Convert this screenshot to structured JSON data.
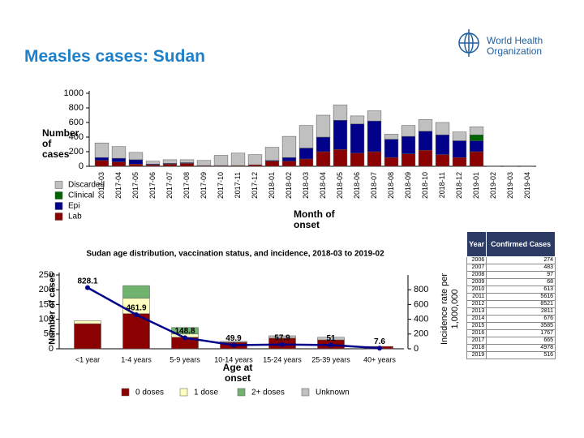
{
  "header": {
    "title": "Measles cases: Sudan",
    "logo_text": [
      "World Health",
      "Organization"
    ]
  },
  "chart_data": [
    {
      "type": "bar",
      "stacked": true,
      "x_label": "Month of onset",
      "y_label": "Number of cases",
      "categories": [
        "2017-03",
        "2017-04",
        "2017-05",
        "2017-06",
        "2017-07",
        "2017-08",
        "2017-09",
        "2017-10",
        "2017-11",
        "2017-12",
        "2018-01",
        "2018-02",
        "2018-03",
        "2018-04",
        "2018-05",
        "2018-06",
        "2018-07",
        "2018-08",
        "2018-09",
        "2018-10",
        "2018-11",
        "2018-12",
        "2019-01",
        "2019-02",
        "2019-03",
        "2019-04"
      ],
      "series": [
        {
          "name": "Lab",
          "color": "#8b0000",
          "values": [
            80,
            60,
            30,
            20,
            30,
            40,
            10,
            10,
            10,
            20,
            70,
            70,
            100,
            200,
            230,
            180,
            200,
            120,
            170,
            220,
            160,
            120,
            200,
            0,
            0,
            0
          ]
        },
        {
          "name": "Epi",
          "color": "#00008b",
          "values": [
            40,
            50,
            60,
            10,
            10,
            10,
            0,
            0,
            0,
            0,
            10,
            50,
            150,
            200,
            400,
            400,
            420,
            250,
            240,
            260,
            270,
            230,
            150,
            0,
            0,
            0
          ]
        },
        {
          "name": "Clinical",
          "color": "#006400",
          "values": [
            0,
            0,
            0,
            0,
            0,
            0,
            0,
            0,
            0,
            0,
            0,
            0,
            0,
            0,
            0,
            0,
            0,
            0,
            0,
            0,
            0,
            0,
            80,
            0,
            0,
            0
          ]
        },
        {
          "name": "Discarded",
          "color": "#c0c0c0",
          "values": [
            200,
            160,
            100,
            40,
            50,
            40,
            70,
            140,
            170,
            140,
            180,
            290,
            310,
            300,
            210,
            110,
            140,
            70,
            150,
            160,
            170,
            120,
            110,
            5,
            5,
            5
          ]
        }
      ],
      "ylim": [
        0,
        1000
      ],
      "yticks": [
        0,
        200,
        400,
        600,
        800,
        1000
      ],
      "grid": false
    },
    {
      "type": "bar",
      "stacked": true,
      "title": "Sudan age distribution, vaccination status, and incidence, 2018-03 to 2019-02",
      "x_label": "Age at onset",
      "y_label": "Number of cases",
      "y2_label": "Incidence rate per 1,000,000",
      "categories": [
        "<1 year",
        "1-4 years",
        "5-9 years",
        "10-14 years",
        "15-24 years",
        "25-39 years",
        "40+ years"
      ],
      "series": [
        {
          "name": "0 doses",
          "color": "#8b0000",
          "values": [
            85,
            119,
            39,
            22,
            36,
            30,
            8
          ]
        },
        {
          "name": "1 dose",
          "color": "#ffffc0",
          "values": [
            10,
            52,
            11,
            0,
            0,
            0,
            0
          ]
        },
        {
          "name": "2+ doses",
          "color": "#6fb36f",
          "values": [
            0,
            43,
            22,
            0,
            0,
            0,
            0
          ]
        },
        {
          "name": "Unknown",
          "color": "#c0c0c0",
          "values": [
            0,
            0,
            0,
            3,
            8,
            9,
            0
          ]
        },
        {
          "type": "line",
          "axis": "y2",
          "color": "#00008b",
          "values": [
            828.1,
            461.9,
            148.8,
            49.9,
            57.9,
            51,
            7.6
          ]
        }
      ],
      "ylim": [
        0,
        250
      ],
      "yticks": [
        0,
        50,
        100,
        150,
        200,
        250
      ],
      "y2lim": [
        0,
        1000
      ],
      "y2ticks": [
        0,
        200,
        400,
        600,
        800
      ],
      "grid": false
    }
  ],
  "table": {
    "columns": [
      "Year",
      "Confirmed Cases"
    ],
    "rows": [
      [
        2006,
        274
      ],
      [
        2007,
        483
      ],
      [
        2008,
        97
      ],
      [
        2009,
        68
      ],
      [
        2010,
        613
      ],
      [
        2011,
        5616
      ],
      [
        2012,
        8521
      ],
      [
        2013,
        2811
      ],
      [
        2014,
        676
      ],
      [
        2015,
        3585
      ],
      [
        2016,
        1767
      ],
      [
        2017,
        665
      ],
      [
        2018,
        4978
      ],
      [
        2019,
        516
      ]
    ]
  }
}
